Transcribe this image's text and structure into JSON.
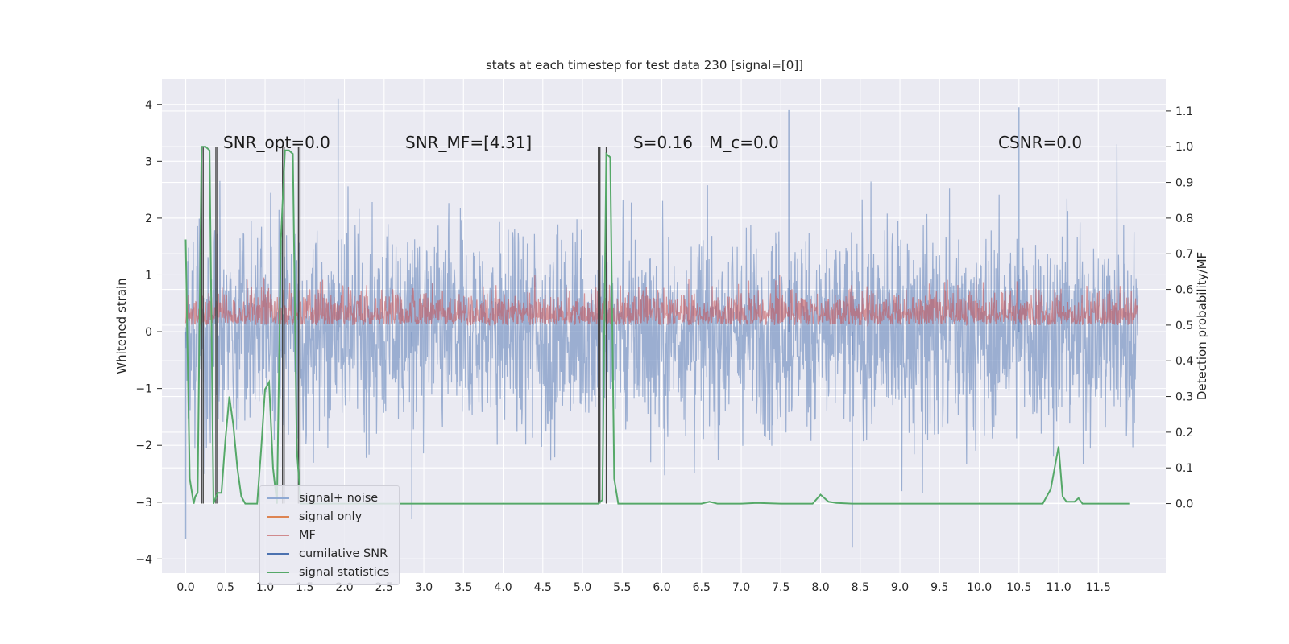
{
  "chart_data": {
    "type": "line",
    "title": "stats at each timestep for test data 230 [signal=[0]]",
    "ylabel_left": "Whitened strain",
    "ylabel_right": "Detection probability/MF",
    "xlim": [
      -0.3,
      12.35
    ],
    "ylim_left": [
      -4.25,
      4.45
    ],
    "ylim_right": [
      -0.195,
      1.19
    ],
    "x_ticks": [
      "0.0",
      "0.5",
      "1.0",
      "1.5",
      "2.0",
      "2.5",
      "3.0",
      "3.5",
      "4.0",
      "4.5",
      "5.0",
      "5.5",
      "6.0",
      "6.5",
      "7.0",
      "7.5",
      "8.0",
      "8.5",
      "9.0",
      "9.5",
      "10.0",
      "10.5",
      "11.0",
      "11.5"
    ],
    "y_ticks_left": [
      "−4",
      "−3",
      "−2",
      "−1",
      "0",
      "1",
      "2",
      "3",
      "4"
    ],
    "y_ticks_right": [
      "0.0",
      "0.1",
      "0.2",
      "0.3",
      "0.4",
      "0.5",
      "0.6",
      "0.7",
      "0.8",
      "0.9",
      "1.0",
      "1.1"
    ],
    "annotations": [
      "SNR_opt=0.0",
      "SNR_MF=[4.31]",
      "S=0.16",
      "M_c=0.0",
      "CSNR=0.0"
    ],
    "legend": {
      "placement": "lower-left",
      "entries": [
        {
          "label": "signal+ noise",
          "color": "#4c72b0"
        },
        {
          "label": "signal only",
          "color": "#dd8452"
        },
        {
          "label": "MF",
          "color": "#c44e52"
        },
        {
          "label": "cumilative SNR",
          "color": "#4c72b0"
        },
        {
          "label": "signal statistics",
          "color": "#55a868"
        }
      ]
    },
    "grid": true,
    "series": [
      {
        "name": "signal+ noise",
        "axis": "left",
        "style": "dense noise trace",
        "x_range": [
          0.0,
          12.0
        ],
        "typical_range": [
          -2.2,
          2.3
        ],
        "peak_values": [
          [
            1.92,
            4.1
          ],
          [
            7.6,
            3.9
          ],
          [
            10.5,
            3.95
          ],
          [
            0.0,
            -3.65
          ],
          [
            8.4,
            -3.8
          ],
          [
            2.85,
            -3.3
          ]
        ]
      },
      {
        "name": "MF",
        "axis": "right",
        "style": "dense trace",
        "x_range": [
          0.0,
          12.0
        ],
        "typical_range": [
          0.5,
          0.63
        ]
      },
      {
        "name": "signal statistics",
        "axis": "right",
        "x": [
          0.0,
          0.05,
          0.1,
          0.12,
          0.15,
          0.2,
          0.25,
          0.3,
          0.35,
          0.4,
          0.45,
          0.5,
          0.55,
          0.6,
          0.65,
          0.7,
          0.75,
          0.8,
          0.85,
          0.9,
          0.95,
          1.0,
          1.05,
          1.1,
          1.15,
          1.2,
          1.25,
          1.3,
          1.35,
          1.4,
          1.45,
          1.5,
          1.55,
          1.6,
          1.8,
          2.5,
          3.5,
          4.5,
          5.0,
          5.15,
          5.2,
          5.25,
          5.3,
          5.35,
          5.4,
          5.45,
          5.5,
          6.0,
          6.5,
          6.6,
          6.7,
          7.0,
          7.2,
          7.5,
          7.9,
          8.0,
          8.1,
          8.2,
          8.4,
          9.0,
          10.0,
          10.8,
          10.9,
          11.0,
          11.05,
          11.1,
          11.2,
          11.25,
          11.3,
          11.5,
          11.9
        ],
        "y": [
          0.74,
          0.07,
          0.0,
          0.02,
          0.03,
          1.0,
          1.0,
          0.99,
          0.0,
          0.03,
          0.03,
          0.18,
          0.3,
          0.22,
          0.1,
          0.02,
          0.0,
          0.0,
          0.0,
          0.0,
          0.15,
          0.32,
          0.34,
          0.1,
          0.0,
          0.74,
          0.99,
          0.99,
          0.98,
          0.15,
          0.0,
          0.0,
          0.0,
          0.0,
          0.0,
          0.0,
          0.0,
          0.0,
          0.0,
          0.0,
          0.0,
          0.01,
          0.98,
          0.97,
          0.07,
          0.0,
          0.0,
          0.0,
          0.0,
          0.005,
          0.0,
          0.0,
          0.002,
          0.0,
          0.0,
          0.025,
          0.005,
          0.002,
          0.0,
          0.0,
          0.0,
          0.0,
          0.04,
          0.16,
          0.02,
          0.005,
          0.005,
          0.015,
          0.0,
          0.0,
          0.0
        ]
      },
      {
        "name": "cumilative SNR",
        "axis": "right",
        "style": "vertical spikes",
        "x": [
          0.2,
          0.22,
          0.38,
          0.4,
          1.22,
          1.24,
          1.42,
          1.44,
          5.2,
          5.22,
          5.3
        ],
        "y": [
          1.0,
          1.0,
          1.0,
          1.0,
          1.0,
          1.0,
          1.0,
          1.0,
          1.0,
          1.0,
          1.0
        ]
      }
    ]
  }
}
